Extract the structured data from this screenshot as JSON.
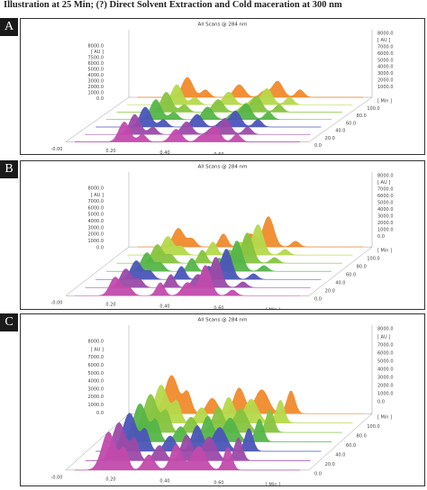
{
  "header": "Illustration at 25 Min; (?) Direct Solvent Extraction and Cold maceration at 300 nm",
  "panels": [
    {
      "label": "A",
      "title": "All Scans @ 284 nm",
      "left_ticks": [
        "8000.0",
        "[ AU ]",
        "7500.0",
        "6000.0",
        "5000.0",
        "4000.0",
        "3000.0",
        "2000.0",
        "1000.0",
        "0.0"
      ],
      "right_ticks": [
        "8000.0",
        "[ AU ]",
        "7000.0",
        "6000.0",
        "5000.0",
        "4000.0",
        "3000.0",
        "2000.0",
        "1000.0"
      ],
      "time_ticks": [
        "-0.00",
        "0.20",
        "0.40",
        "0.60",
        "[ Min ]"
      ],
      "depth_ticks": [
        "[ Min ]",
        "100.0",
        "80.0",
        "60.0",
        "40.0",
        "20.0",
        "0.0"
      ]
    },
    {
      "label": "B",
      "title": "All Scans @ 284 nm",
      "left_ticks": [
        "8000.0",
        "[ AU ]",
        "7000.0",
        "6000.0",
        "5000.0",
        "4000.0",
        "3000.0",
        "2000.0",
        "1000.0",
        "0.0"
      ],
      "right_ticks": [
        "8000.0",
        "[ AU ]",
        "7000.0",
        "6000.0",
        "5000.0",
        "4000.0",
        "3000.0",
        "2000.0",
        "1000.0",
        "0.0"
      ],
      "time_ticks": [
        "-0.00",
        "0.20",
        "0.40",
        "0.60",
        "[ Min ]"
      ],
      "depth_ticks": [
        "[ Min ]",
        "100.0",
        "80.0",
        "60.0",
        "40.0",
        "20.0",
        "0.0"
      ]
    },
    {
      "label": "C",
      "title": "All Scans @ 284 nm",
      "left_ticks": [
        "8000.0",
        "[ AU ]",
        "7000.0",
        "6000.0",
        "5000.0",
        "4000.0",
        "3000.0",
        "2000.0",
        "1000.0",
        "0.0"
      ],
      "right_ticks": [
        "8000.0",
        "[ AU ]",
        "7000.0",
        "6000.0",
        "5000.0",
        "4000.0",
        "3000.0",
        "2000.0",
        "1000.0",
        "0.0"
      ],
      "time_ticks": [
        "-0.00",
        "0.20",
        "0.40",
        "0.60",
        "[ Min ]"
      ],
      "depth_ticks": [
        "[ Min ]",
        "100.0",
        "80.0",
        "60.0",
        "40.0",
        "20.0",
        "0.0"
      ]
    }
  ]
}
